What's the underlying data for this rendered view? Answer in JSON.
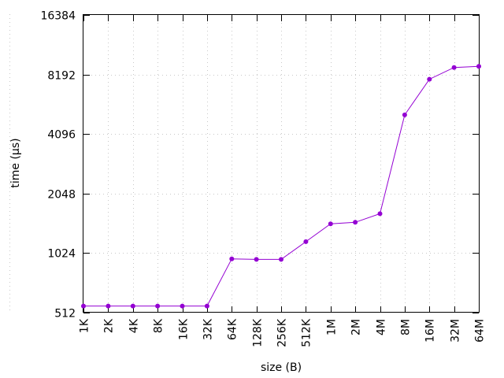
{
  "chart_data": {
    "type": "line",
    "xlabel": "size (B)",
    "ylabel": "time (µs)",
    "y_scale": "log2",
    "ylim": [
      512,
      16384
    ],
    "y_ticks": [
      512,
      1024,
      2048,
      4096,
      8192,
      16384
    ],
    "grid": true,
    "legend": "none",
    "categories": [
      "1K",
      "2K",
      "4K",
      "8K",
      "16K",
      "32K",
      "64K",
      "128K",
      "256K",
      "512K",
      "1M",
      "2M",
      "4M",
      "8M",
      "16M",
      "32M",
      "64M"
    ],
    "series": [
      {
        "color": "#9400d3",
        "values": [
          553,
          553,
          553,
          553,
          553,
          553,
          958,
          952,
          952,
          1170,
          1440,
          1465,
          1620,
          5120,
          7750,
          8890,
          9000
        ]
      }
    ]
  }
}
